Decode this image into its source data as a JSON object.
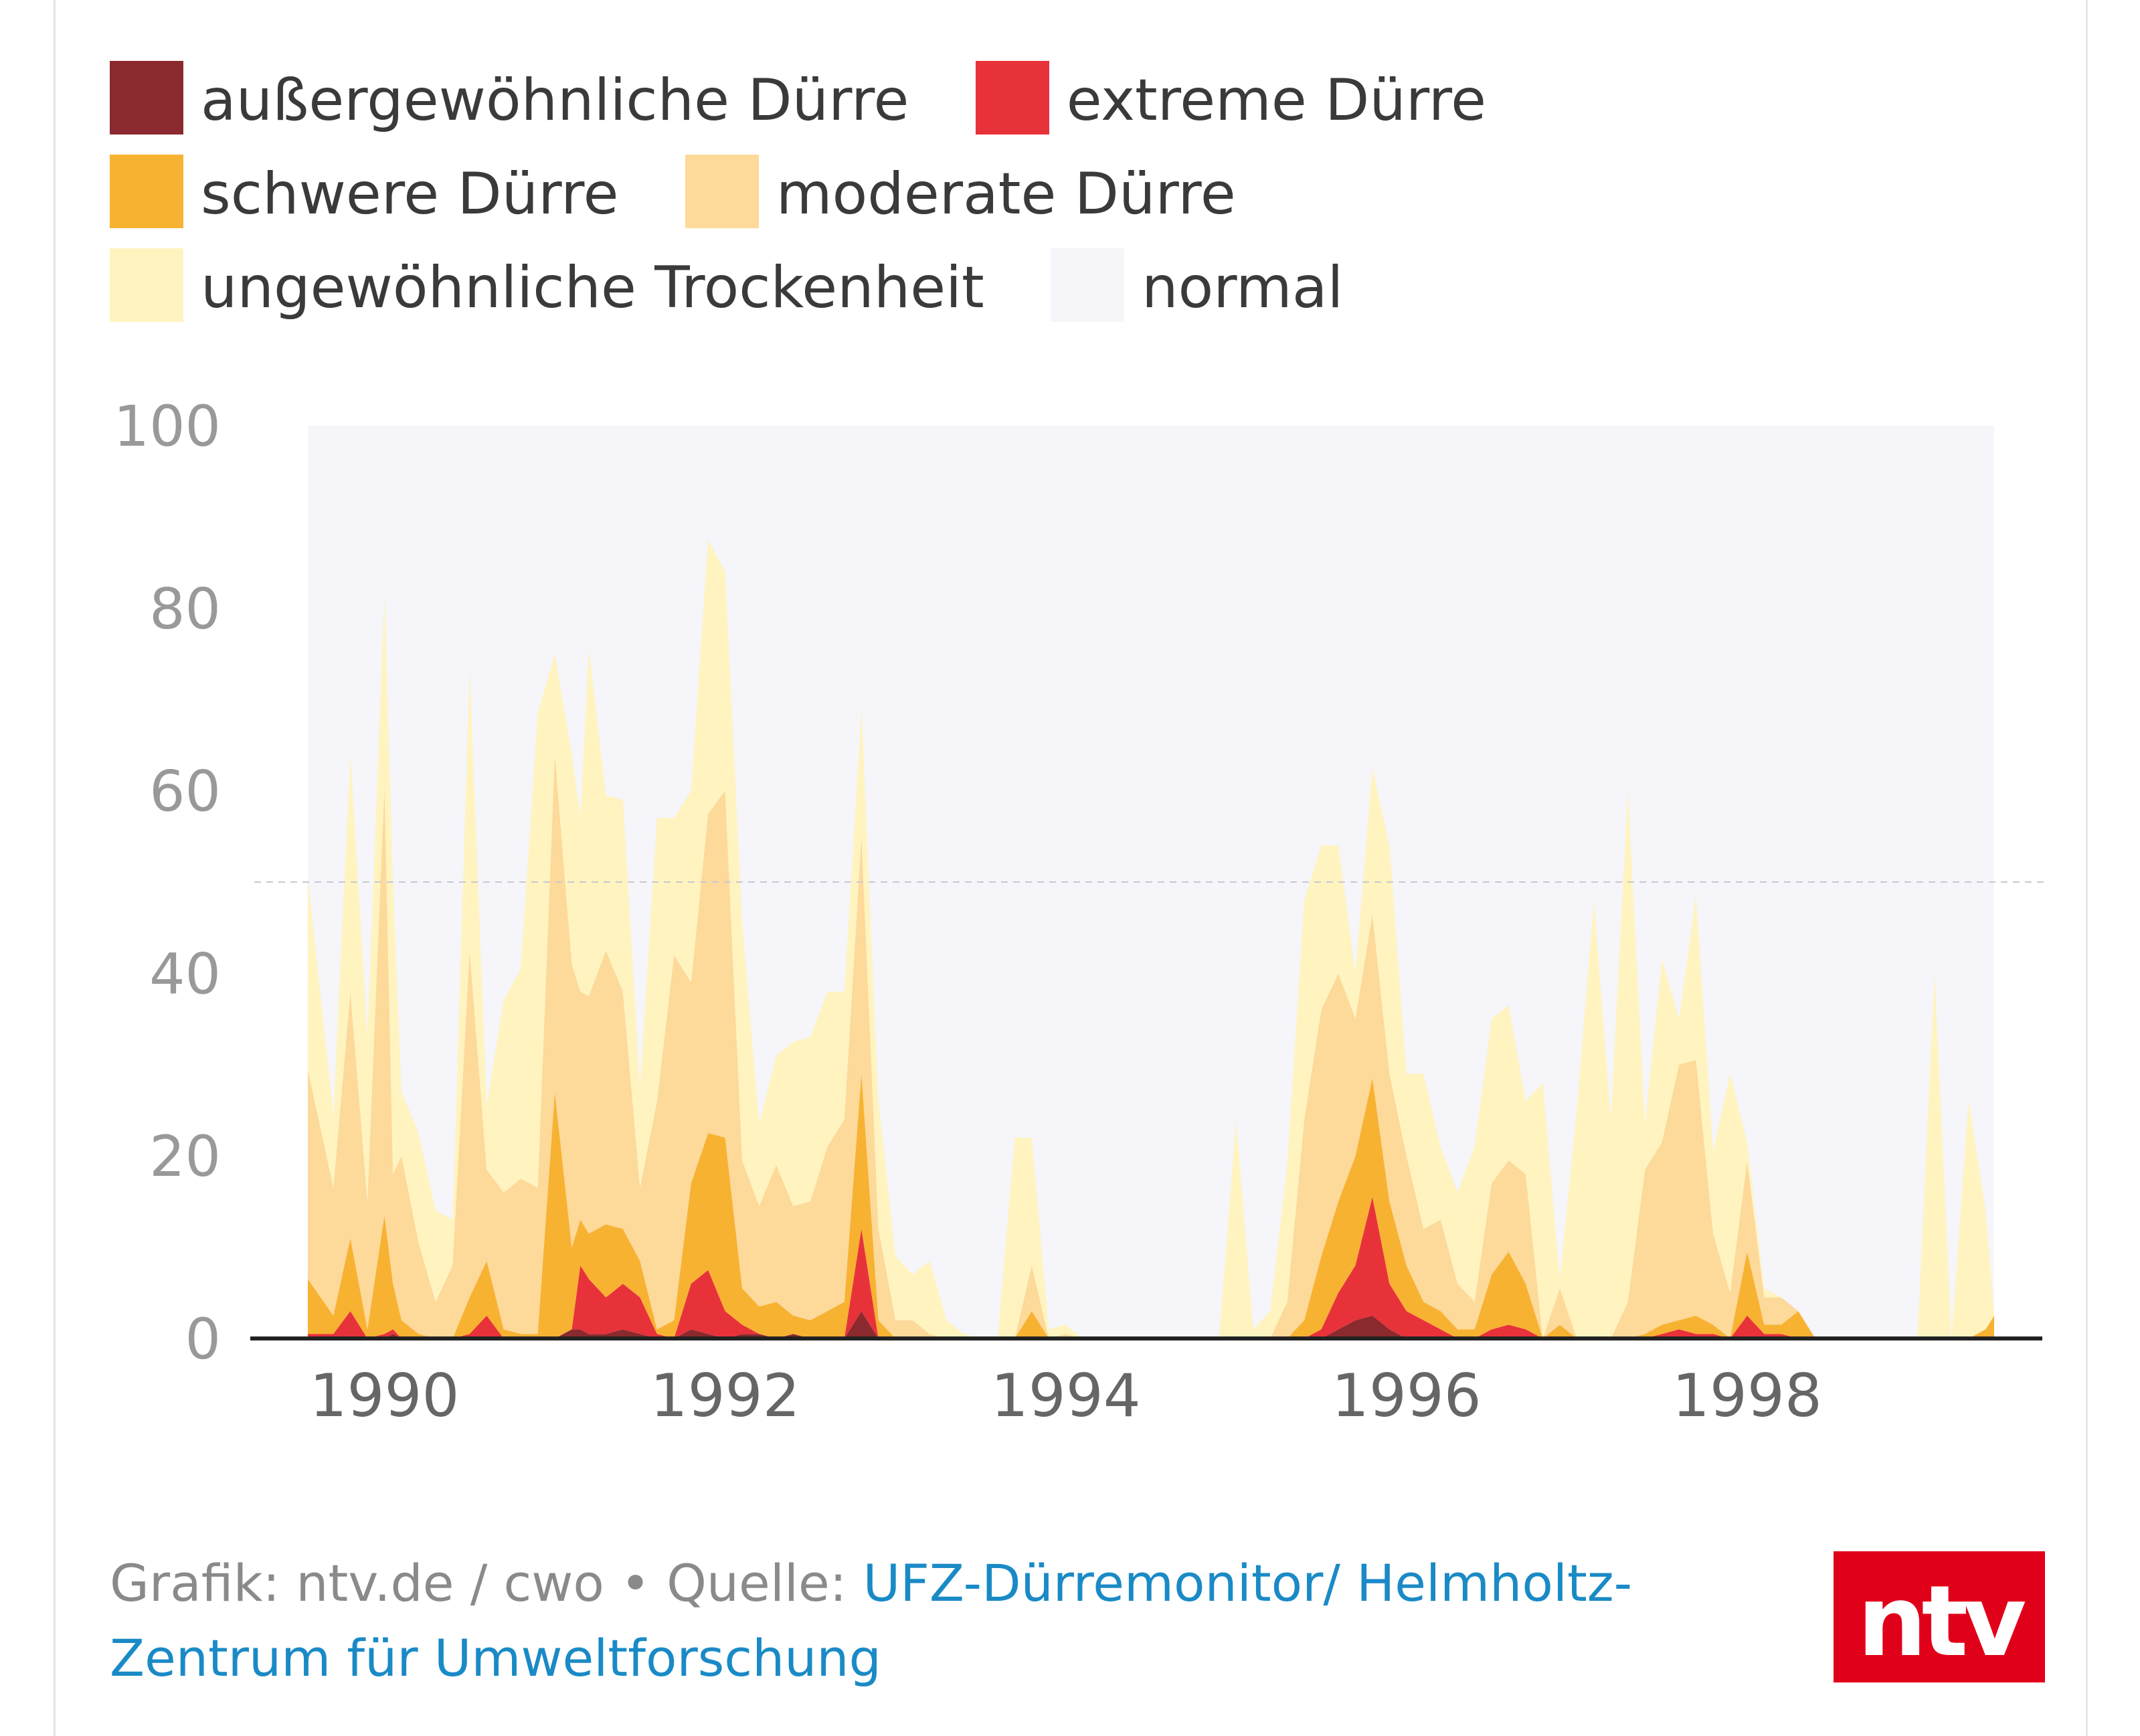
{
  "chart_data": {
    "type": "area",
    "stacked": true,
    "title": "",
    "xlabel": "",
    "ylabel": "",
    "ylim": [
      0,
      100
    ],
    "xlim": [
      1989.55,
      1999.45
    ],
    "yticks": [
      0,
      20,
      40,
      60,
      80,
      100
    ],
    "xticks": [
      1990,
      1992,
      1994,
      1996,
      1998
    ],
    "reference_line": 50,
    "grid": false,
    "legend_position": "top",
    "x": [
      1989.55,
      1989.7,
      1989.8,
      1989.9,
      1990.0,
      1990.05,
      1990.1,
      1990.2,
      1990.3,
      1990.4,
      1990.5,
      1990.6,
      1990.7,
      1990.8,
      1990.9,
      1991.0,
      1991.1,
      1991.15,
      1991.2,
      1991.3,
      1991.4,
      1991.5,
      1991.6,
      1991.7,
      1991.8,
      1991.9,
      1992.0,
      1992.1,
      1992.2,
      1992.3,
      1992.4,
      1992.5,
      1992.6,
      1992.7,
      1992.8,
      1992.9,
      1993.0,
      1993.1,
      1993.2,
      1993.3,
      1993.4,
      1993.5,
      1993.6,
      1993.7,
      1993.8,
      1993.9,
      1994.0,
      1994.1,
      1994.2,
      1994.3,
      1994.4,
      1994.5,
      1994.6,
      1994.7,
      1994.8,
      1994.9,
      1995.0,
      1995.1,
      1995.2,
      1995.3,
      1995.4,
      1995.5,
      1995.6,
      1995.7,
      1995.8,
      1995.9,
      1996.0,
      1996.1,
      1996.2,
      1996.3,
      1996.4,
      1996.5,
      1996.6,
      1996.7,
      1996.8,
      1996.9,
      1997.0,
      1997.1,
      1997.2,
      1997.3,
      1997.4,
      1997.5,
      1997.6,
      1997.7,
      1997.8,
      1997.9,
      1998.0,
      1998.1,
      1998.2,
      1998.3,
      1998.4,
      1998.5,
      1998.6,
      1998.7,
      1998.8,
      1998.9,
      1999.0,
      1999.1,
      1999.2,
      1999.3,
      1999.4,
      1999.45
    ],
    "series": [
      {
        "name": "außergewöhnliche Dürre",
        "color": "#8b2a2e",
        "values": [
          0,
          0,
          0,
          0,
          0,
          0.5,
          0,
          0,
          0,
          0,
          0,
          0,
          0,
          0,
          0,
          0,
          1,
          1,
          0.5,
          0.5,
          1,
          0.5,
          0,
          0,
          1,
          0.5,
          0,
          0.5,
          0.5,
          0,
          0.5,
          0,
          0,
          0,
          3,
          0,
          0,
          0,
          0,
          0,
          0,
          0,
          0,
          0,
          0,
          0,
          0,
          0,
          0,
          0,
          0,
          0,
          0,
          0,
          0,
          0,
          0,
          0,
          0,
          0,
          0,
          0,
          1,
          2,
          2.5,
          1,
          0,
          0,
          0,
          0,
          0,
          0,
          0,
          0,
          0,
          0,
          0,
          0,
          0,
          0,
          0,
          0,
          0,
          0,
          0,
          0,
          0,
          0,
          0,
          0,
          0,
          0,
          0,
          0,
          0,
          0,
          0,
          0,
          0,
          0,
          0,
          0
        ]
      },
      {
        "name": "extreme Dürre",
        "color": "#e8323a",
        "values": [
          0.5,
          0.5,
          3,
          0,
          0.5,
          0.5,
          0,
          0,
          0,
          0,
          0.5,
          2.5,
          0,
          0,
          0,
          0,
          0,
          7,
          6,
          4,
          5,
          4,
          0.5,
          0,
          5,
          7,
          3,
          1,
          0,
          0,
          0,
          0,
          0,
          0,
          9,
          0,
          0,
          0,
          0,
          0,
          0,
          0,
          0,
          0,
          0,
          0,
          0,
          0,
          0,
          0,
          0,
          0,
          0,
          0,
          0,
          0,
          0,
          0,
          0,
          0,
          0,
          1,
          4,
          6,
          13,
          5,
          3,
          2,
          1,
          0,
          0,
          1,
          1.5,
          1,
          0,
          0,
          0,
          0,
          0,
          0,
          0,
          0.5,
          1,
          0.5,
          0.5,
          0,
          2.5,
          0.5,
          0.5,
          0,
          0,
          0,
          0,
          0,
          0,
          0,
          0,
          0,
          0,
          0,
          0,
          0
        ]
      },
      {
        "name": "schwere Dürre",
        "color": "#f8b232",
        "values": [
          6,
          2,
          8,
          1,
          13,
          5,
          2,
          0.5,
          0,
          0,
          4,
          6,
          1,
          0.5,
          0.5,
          27,
          9,
          5,
          5,
          8,
          6,
          4,
          0.5,
          2,
          11,
          15,
          19,
          4,
          3,
          4,
          2,
          2,
          3,
          4,
          17,
          2,
          0,
          0,
          0,
          0,
          0,
          0,
          0,
          0,
          3,
          0,
          0,
          0,
          0,
          0,
          0,
          0,
          0,
          0,
          0,
          0,
          0,
          0,
          0,
          0,
          2,
          8,
          10,
          12,
          13,
          9,
          5,
          2,
          2,
          1,
          1,
          6,
          8,
          5,
          0,
          1.5,
          0,
          0,
          0,
          0,
          0.5,
          1,
          1,
          2,
          1,
          0,
          7,
          1,
          1,
          3,
          0,
          0,
          0,
          0,
          0,
          0,
          0,
          0,
          0,
          0,
          1,
          2.5
        ]
      },
      {
        "name": "moderate Dürre",
        "color": "#fdd99a",
        "values": [
          23,
          14,
          27,
          14,
          47,
          12,
          18,
          10,
          4,
          8,
          38,
          10,
          15,
          17,
          16,
          37,
          31,
          25,
          26,
          30,
          26,
          8,
          25,
          40,
          22,
          35,
          38,
          14,
          11,
          15,
          12,
          13,
          18,
          20,
          26,
          10,
          2,
          2,
          0.5,
          0,
          0,
          0,
          0,
          0,
          5,
          0,
          0.5,
          0,
          0,
          0,
          0,
          0,
          0,
          0,
          0,
          0,
          0,
          0,
          0,
          4,
          22,
          27,
          25,
          15,
          18,
          14,
          12,
          8,
          10,
          5,
          3,
          10,
          10,
          12,
          0,
          4,
          0,
          0,
          0,
          4,
          18,
          20,
          28,
          28,
          10,
          5,
          10,
          3,
          3,
          0,
          0,
          0,
          0,
          0,
          0,
          0,
          0,
          0,
          0,
          0,
          0,
          0
        ]
      },
      {
        "name": "ungewöhnliche Trockenheit",
        "color": "#fff4bf",
        "values": [
          21,
          8,
          26,
          18,
          21,
          32,
          7,
          12,
          10,
          5,
          31,
          7,
          21,
          23,
          52,
          11,
          23,
          19,
          38,
          17,
          21,
          11,
          31,
          15,
          21,
          30,
          24,
          26,
          9,
          12,
          18,
          18,
          17,
          14,
          14,
          14,
          7,
          5,
          8,
          2,
          0.5,
          0,
          0,
          22,
          14,
          1,
          1,
          0,
          0,
          0,
          0,
          0,
          0,
          0,
          0,
          0,
          24,
          1,
          3,
          15,
          24,
          18,
          14,
          5,
          16,
          25,
          9,
          17,
          8,
          10,
          17,
          18,
          17,
          8,
          28,
          1,
          25,
          48,
          24,
          56,
          5,
          20,
          5,
          18,
          9,
          24,
          2,
          1,
          0,
          0,
          0,
          0,
          0,
          0,
          0,
          0,
          0,
          40,
          0,
          26,
          13,
          0
        ]
      }
    ]
  },
  "legend": [
    {
      "label": "außergewöhnliche Dürre",
      "color": "#8b2a2e"
    },
    {
      "label": "extreme Dürre",
      "color": "#e8323a"
    },
    {
      "label": "schwere Dürre",
      "color": "#f8b232"
    },
    {
      "label": "moderate Dürre",
      "color": "#fdd99a"
    },
    {
      "label": "ungewöhnliche Trockenheit",
      "color": "#fff4bf"
    },
    {
      "label": "normal",
      "color": "#f5f5fa"
    }
  ],
  "footer": {
    "credit": "Grafik: ntv.de / cwo • Quelle: ",
    "source_link": "UFZ-Dürremonitor/ Helmholtz-Zentrum für Umweltforschung"
  },
  "logo": {
    "text": "ntv",
    "color": "#e1001a"
  }
}
